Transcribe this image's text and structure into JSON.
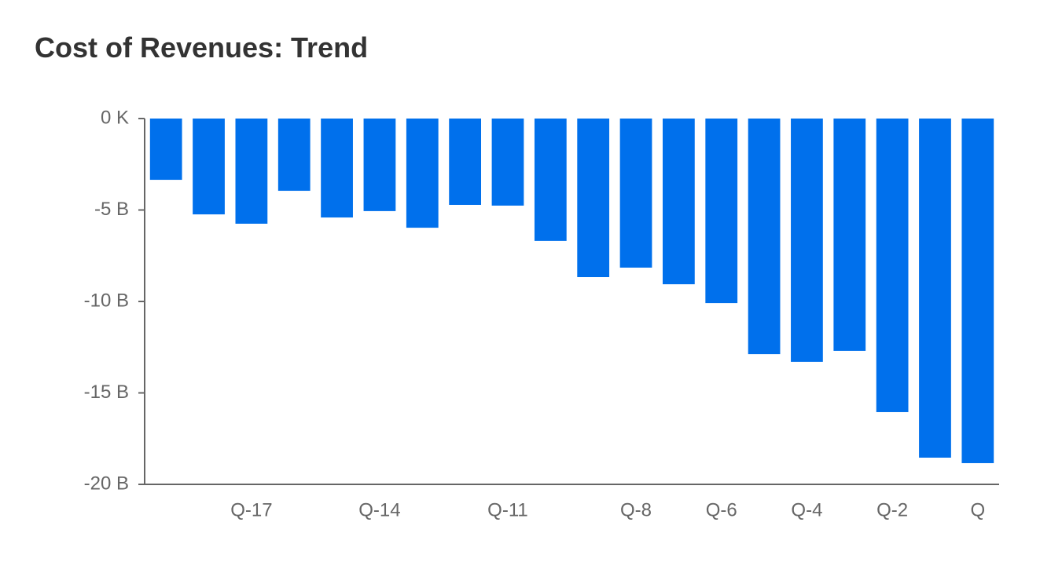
{
  "chart_data": {
    "type": "bar",
    "title": "Cost of Revenues: Trend",
    "categories": [
      null,
      null,
      "Q-17",
      null,
      null,
      "Q-14",
      null,
      null,
      "Q-11",
      null,
      null,
      "Q-8",
      null,
      "Q-6",
      null,
      "Q-4",
      null,
      "Q-2",
      null,
      "Q"
    ],
    "values": [
      -3.35,
      -5.24,
      -5.75,
      -3.95,
      -5.41,
      -5.06,
      -5.97,
      -4.72,
      -4.76,
      -6.69,
      -8.67,
      -8.15,
      -9.06,
      -10.09,
      -12.88,
      -13.3,
      -12.7,
      -16.05,
      -18.54,
      -18.84
    ],
    "color": "#0070ec",
    "ylim": [
      -20,
      0
    ],
    "yticks": [
      {
        "value": 0,
        "label": "0 K"
      },
      {
        "value": -5,
        "label": "-5 B"
      },
      {
        "value": -10,
        "label": "-10 B"
      },
      {
        "value": -15,
        "label": "-15 B"
      },
      {
        "value": -20,
        "label": "-20 B"
      }
    ],
    "grid": false
  }
}
